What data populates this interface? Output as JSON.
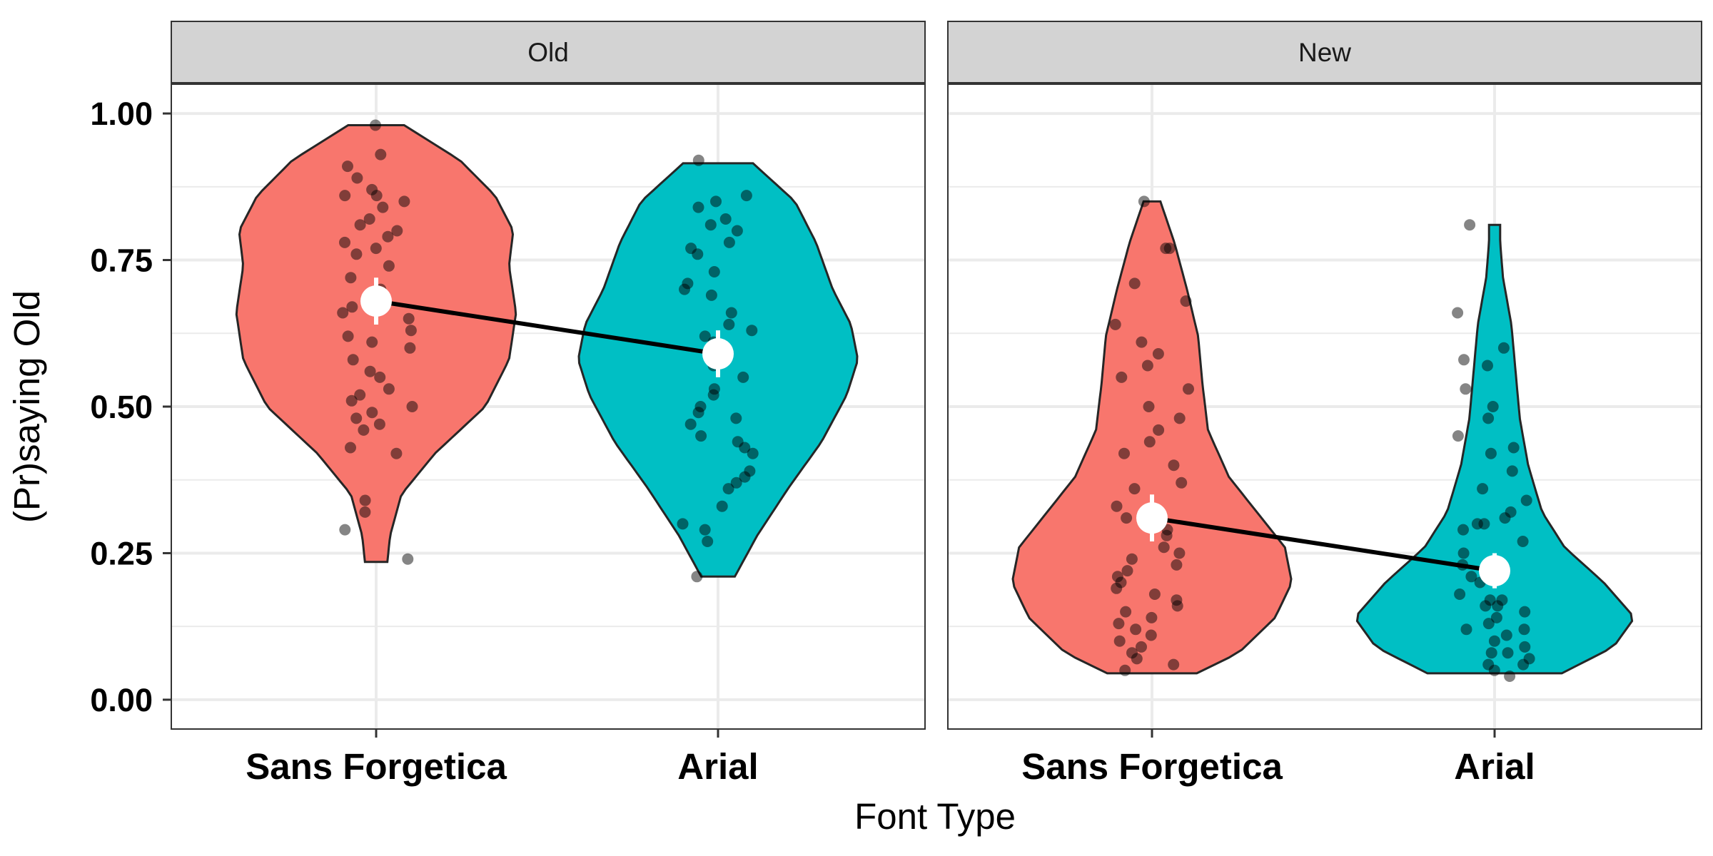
{
  "chart_data": {
    "type": "violin",
    "xlabel": "Font Type",
    "ylabel": "(Pr)saying Old",
    "ylim": [
      -0.05,
      1.05
    ],
    "yticks": [
      "0.00",
      "0.25",
      "0.50",
      "0.75",
      "1.00"
    ],
    "categories": [
      "Sans Forgetica",
      "Arial"
    ],
    "colors": {
      "Sans Forgetica": "#F8766D",
      "Arial": "#00BFC4"
    },
    "grid": true,
    "panels": [
      {
        "label": "Old",
        "groups": [
          {
            "category": "Sans Forgetica",
            "mean": 0.68,
            "ci": [
              0.64,
              0.72
            ],
            "violin": {
              "min": 0.235,
              "max": 0.98,
              "profile": [
                [
                  0.235,
                  0.08
                ],
                [
                  0.28,
                  0.1
                ],
                [
                  0.35,
                  0.18
                ],
                [
                  0.42,
                  0.42
                ],
                [
                  0.5,
                  0.78
                ],
                [
                  0.58,
                  0.95
                ],
                [
                  0.66,
                  1.0
                ],
                [
                  0.74,
                  0.95
                ],
                [
                  0.8,
                  0.98
                ],
                [
                  0.86,
                  0.85
                ],
                [
                  0.92,
                  0.6
                ],
                [
                  0.98,
                  0.2
                ]
              ]
            },
            "points": [
              0.98,
              0.93,
              0.91,
              0.89,
              0.87,
              0.86,
              0.86,
              0.85,
              0.84,
              0.82,
              0.81,
              0.8,
              0.79,
              0.78,
              0.77,
              0.76,
              0.74,
              0.72,
              0.7,
              0.69,
              0.67,
              0.66,
              0.65,
              0.63,
              0.62,
              0.61,
              0.6,
              0.58,
              0.56,
              0.55,
              0.53,
              0.52,
              0.51,
              0.5,
              0.49,
              0.48,
              0.47,
              0.46,
              0.43,
              0.42,
              0.34,
              0.32,
              0.29,
              0.24
            ]
          },
          {
            "category": "Arial",
            "mean": 0.59,
            "ci": [
              0.55,
              0.63
            ],
            "violin": {
              "min": 0.21,
              "max": 0.915,
              "profile": [
                [
                  0.21,
                  0.12
                ],
                [
                  0.28,
                  0.28
                ],
                [
                  0.36,
                  0.5
                ],
                [
                  0.44,
                  0.74
                ],
                [
                  0.52,
                  0.92
                ],
                [
                  0.58,
                  1.0
                ],
                [
                  0.64,
                  0.95
                ],
                [
                  0.7,
                  0.82
                ],
                [
                  0.78,
                  0.7
                ],
                [
                  0.85,
                  0.55
                ],
                [
                  0.915,
                  0.25
                ]
              ]
            },
            "points": [
              0.92,
              0.86,
              0.85,
              0.84,
              0.82,
              0.81,
              0.8,
              0.78,
              0.77,
              0.76,
              0.73,
              0.71,
              0.7,
              0.69,
              0.66,
              0.64,
              0.63,
              0.62,
              0.61,
              0.6,
              0.57,
              0.55,
              0.53,
              0.52,
              0.5,
              0.49,
              0.48,
              0.47,
              0.45,
              0.44,
              0.43,
              0.42,
              0.39,
              0.38,
              0.37,
              0.36,
              0.33,
              0.3,
              0.29,
              0.27,
              0.21
            ]
          }
        ]
      },
      {
        "label": "New",
        "groups": [
          {
            "category": "Sans Forgetica",
            "mean": 0.31,
            "ci": [
              0.27,
              0.35
            ],
            "violin": {
              "min": 0.045,
              "max": 0.85,
              "profile": [
                [
                  0.045,
                  0.32
                ],
                [
                  0.08,
                  0.62
                ],
                [
                  0.14,
                  0.88
                ],
                [
                  0.2,
                  1.0
                ],
                [
                  0.26,
                  0.95
                ],
                [
                  0.32,
                  0.75
                ],
                [
                  0.38,
                  0.55
                ],
                [
                  0.46,
                  0.4
                ],
                [
                  0.54,
                  0.36
                ],
                [
                  0.62,
                  0.33
                ],
                [
                  0.7,
                  0.25
                ],
                [
                  0.78,
                  0.16
                ],
                [
                  0.85,
                  0.06
                ]
              ]
            },
            "points": [
              0.85,
              0.77,
              0.77,
              0.71,
              0.68,
              0.64,
              0.61,
              0.59,
              0.57,
              0.55,
              0.53,
              0.5,
              0.48,
              0.46,
              0.44,
              0.42,
              0.4,
              0.37,
              0.36,
              0.33,
              0.31,
              0.29,
              0.28,
              0.26,
              0.25,
              0.24,
              0.23,
              0.22,
              0.21,
              0.2,
              0.19,
              0.18,
              0.17,
              0.16,
              0.15,
              0.14,
              0.13,
              0.12,
              0.11,
              0.1,
              0.09,
              0.08,
              0.07,
              0.06,
              0.05
            ]
          },
          {
            "category": "Arial",
            "mean": 0.22,
            "ci": [
              0.19,
              0.25
            ],
            "violin": {
              "min": 0.045,
              "max": 0.81,
              "profile": [
                [
                  0.045,
                  0.48
                ],
                [
                  0.09,
                  0.85
                ],
                [
                  0.14,
                  1.0
                ],
                [
                  0.2,
                  0.78
                ],
                [
                  0.26,
                  0.5
                ],
                [
                  0.32,
                  0.34
                ],
                [
                  0.4,
                  0.24
                ],
                [
                  0.48,
                  0.18
                ],
                [
                  0.56,
                  0.15
                ],
                [
                  0.64,
                  0.12
                ],
                [
                  0.72,
                  0.06
                ],
                [
                  0.78,
                  0.04
                ],
                [
                  0.81,
                  0.04
                ]
              ]
            },
            "points": [
              0.81,
              0.66,
              0.6,
              0.58,
              0.57,
              0.53,
              0.5,
              0.48,
              0.45,
              0.43,
              0.42,
              0.39,
              0.36,
              0.34,
              0.32,
              0.31,
              0.3,
              0.3,
              0.29,
              0.27,
              0.25,
              0.23,
              0.21,
              0.2,
              0.18,
              0.17,
              0.17,
              0.16,
              0.16,
              0.15,
              0.14,
              0.13,
              0.12,
              0.12,
              0.11,
              0.1,
              0.09,
              0.08,
              0.08,
              0.07,
              0.06,
              0.06,
              0.05,
              0.04
            ]
          }
        ]
      }
    ]
  }
}
